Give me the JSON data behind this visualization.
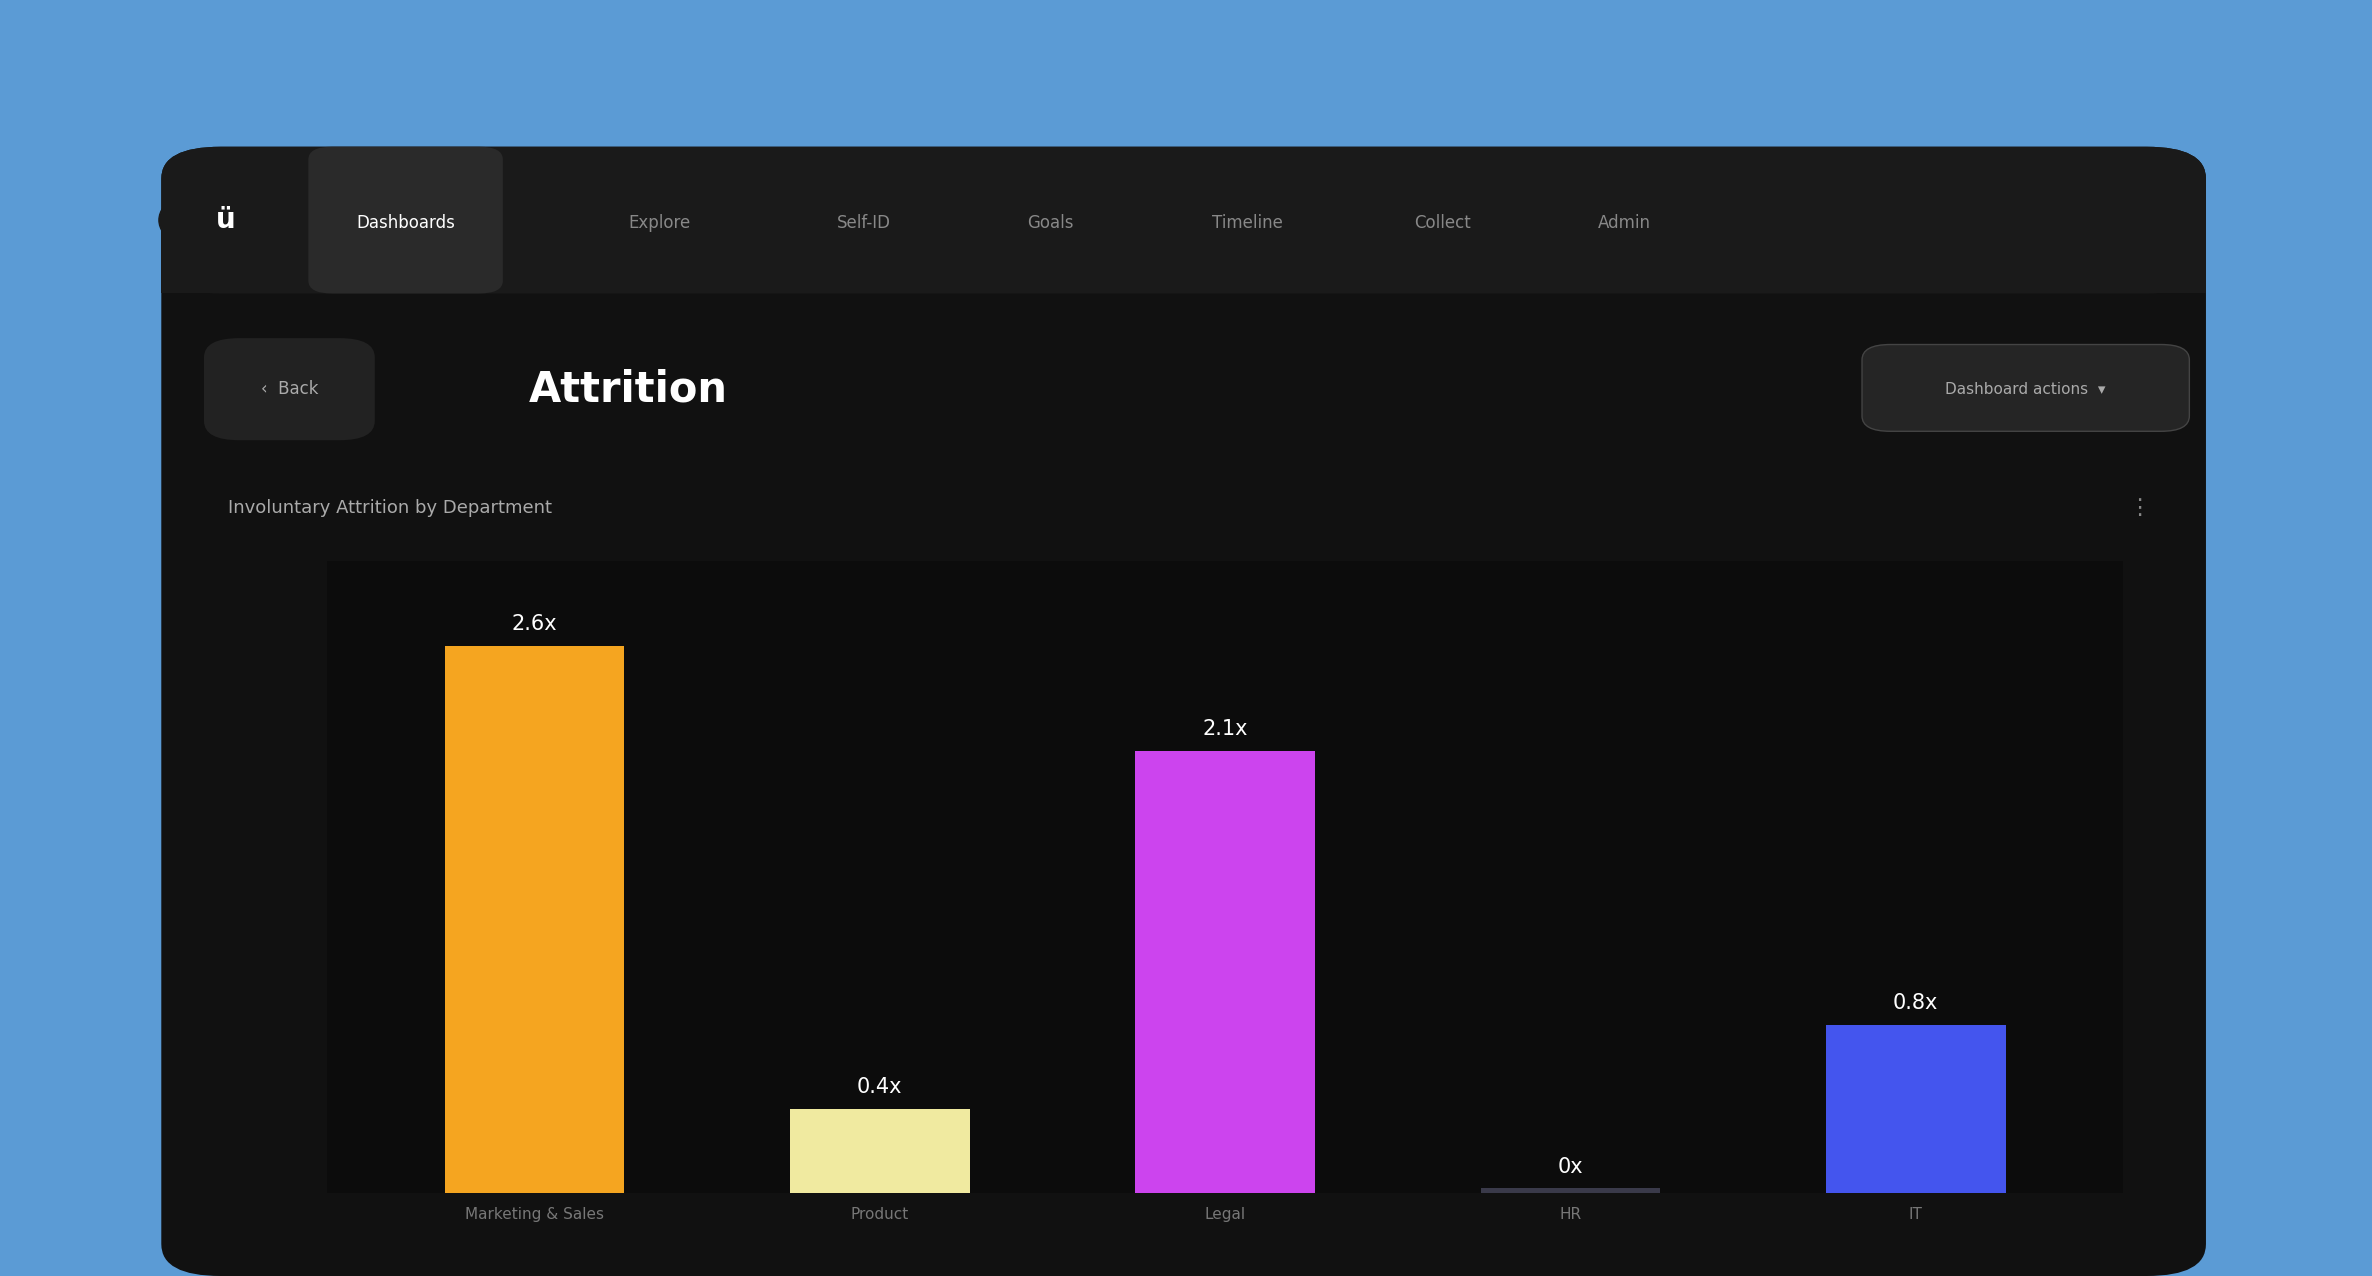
{
  "title": "Involuntary Attrition by Department",
  "page_title": "Attrition",
  "nav_items": [
    "Dashboards",
    "Explore",
    "Self-ID",
    "Goals",
    "Timeline",
    "Collect",
    "Admin"
  ],
  "categories": [
    "Marketing & Sales",
    "Product",
    "Legal",
    "HR",
    "IT"
  ],
  "values": [
    2.6,
    0.4,
    2.1,
    0.0,
    0.8
  ],
  "labels": [
    "2.6x",
    "0.4x",
    "2.1x",
    "0x",
    "0.8x"
  ],
  "bar_colors": [
    "#F5A520",
    "#F0EAA0",
    "#CC44EE",
    "#111111",
    "#4455EE"
  ],
  "hr_bar_color": "#3a3a4a",
  "outer_background": "#5B9BD5",
  "panel_bg": "#111111",
  "nav_bg": "#1a1a1a",
  "nav_active_bg": "#2a2a2a",
  "chart_bg": "#0c0c0c",
  "white": "#ffffff",
  "grey_text": "#888888",
  "light_grey": "#aaaaaa",
  "label_color": "#ffffff",
  "xticklabel_color": "#777777",
  "ylim": [
    0,
    3.0
  ],
  "label_fontsize": 15,
  "xtick_fontsize": 11,
  "chart_title_fontsize": 13,
  "page_title_fontsize": 30,
  "nav_fontsize": 12,
  "back_fontsize": 12
}
